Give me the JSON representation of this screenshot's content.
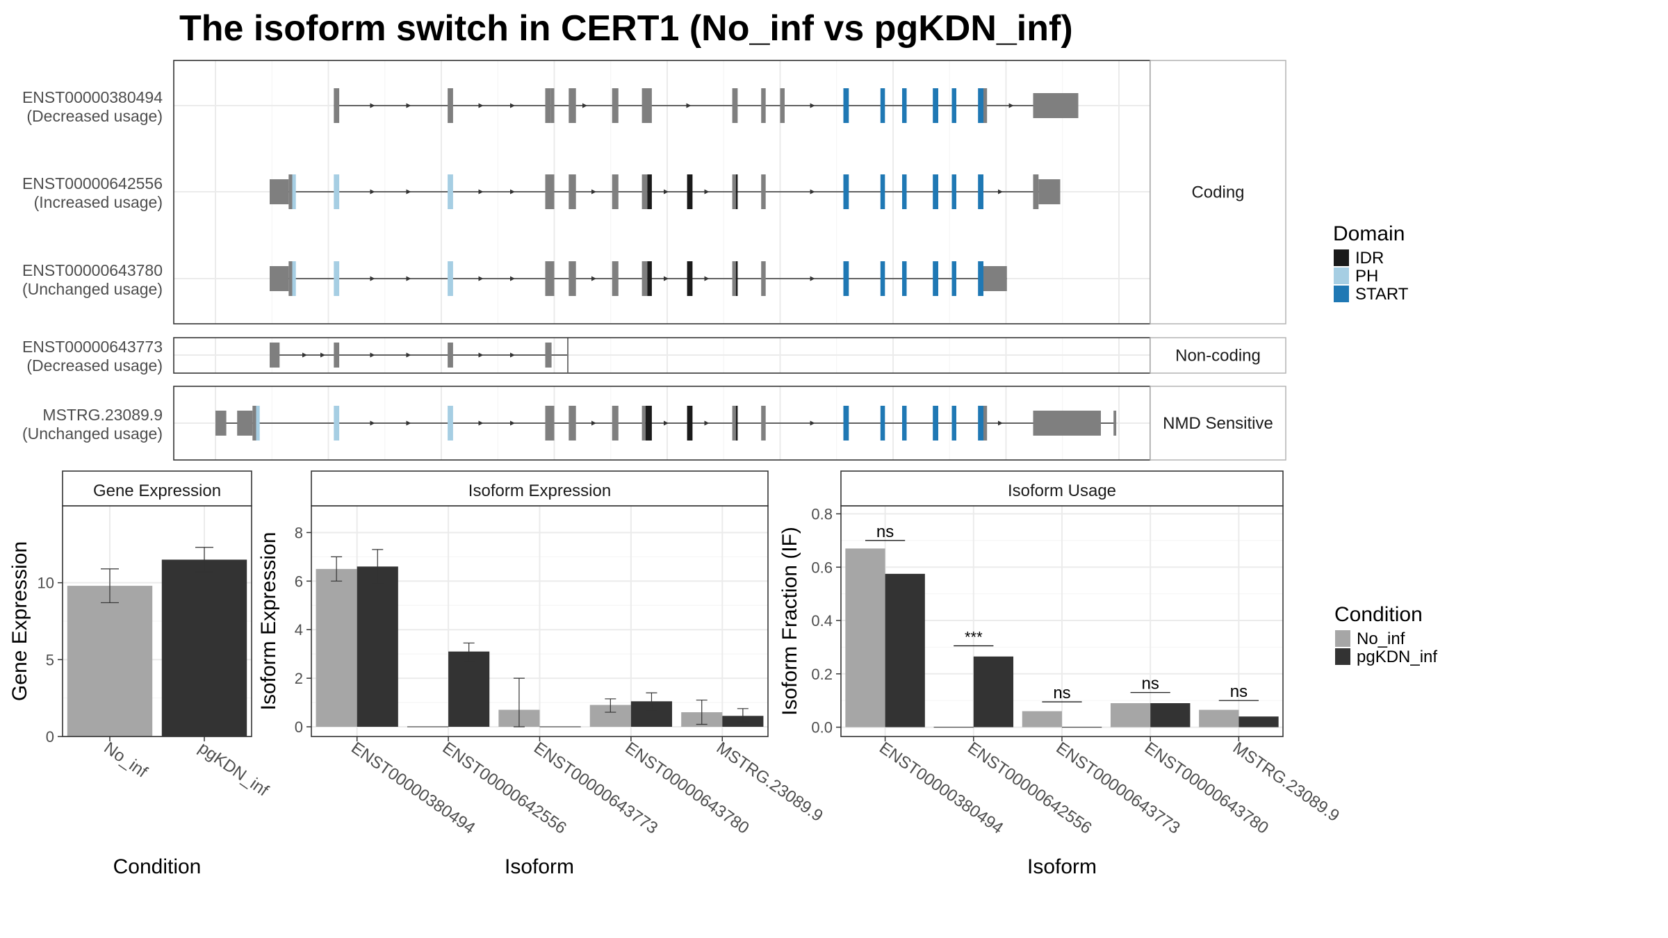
{
  "title": "The isoform switch in CERT1 (No_inf vs pgKDN_inf)",
  "colors": {
    "exon": "#7f7f7f",
    "idr": "#1a1a1a",
    "ph": "#a6cee3",
    "start": "#1f78b4",
    "no_inf": "#a6a6a6",
    "pgkdn_inf": "#333333",
    "grid": "#ebebeb",
    "strip_bg": "#ffffff",
    "border": "#333333"
  },
  "structure": {
    "genomic_range": [
      0,
      1000
    ],
    "panels": [
      {
        "label": "Coding",
        "isoforms": [
          0,
          1,
          2
        ]
      },
      {
        "label": "Non-coding",
        "isoforms": [
          3
        ]
      },
      {
        "label": "NMD Sensitive",
        "isoforms": [
          4
        ]
      }
    ],
    "isoforms": [
      {
        "id": "ENST00000380494",
        "usage": "(Decreased usage)",
        "exons": [
          {
            "s": 131,
            "e": 137,
            "t": "cds"
          },
          {
            "s": 257,
            "e": 263,
            "t": "cds"
          },
          {
            "s": 365,
            "e": 371,
            "t": "cds"
          },
          {
            "s": 371,
            "e": 375,
            "t": "cds"
          },
          {
            "s": 391,
            "e": 399,
            "t": "cds"
          },
          {
            "s": 439,
            "e": 446,
            "t": "cds"
          },
          {
            "s": 472,
            "e": 483,
            "t": "cds"
          },
          {
            "s": 572,
            "e": 578,
            "t": "cds"
          },
          {
            "s": 604,
            "e": 609,
            "t": "cds"
          },
          {
            "s": 625,
            "e": 630,
            "t": "cds"
          },
          {
            "s": 695,
            "e": 701,
            "t": "start"
          },
          {
            "s": 736,
            "e": 741,
            "t": "start"
          },
          {
            "s": 760,
            "e": 765,
            "t": "start"
          },
          {
            "s": 794,
            "e": 800,
            "t": "start"
          },
          {
            "s": 815,
            "e": 820,
            "t": "start"
          },
          {
            "s": 844,
            "e": 850,
            "t": "start"
          },
          {
            "s": 850,
            "e": 854,
            "t": "cds"
          },
          {
            "s": 905,
            "e": 955,
            "t": "utr"
          }
        ],
        "arrows": [
          175,
          215,
          295,
          330,
          410,
          525,
          662,
          882
        ]
      },
      {
        "id": "ENST00000642556",
        "usage": "(Increased usage)",
        "exons": [
          {
            "s": 60,
            "e": 81,
            "t": "utr"
          },
          {
            "s": 81,
            "e": 85,
            "t": "cds"
          },
          {
            "s": 85,
            "e": 89,
            "t": "ph"
          },
          {
            "s": 131,
            "e": 137,
            "t": "ph"
          },
          {
            "s": 257,
            "e": 263,
            "t": "ph"
          },
          {
            "s": 365,
            "e": 375,
            "t": "cds"
          },
          {
            "s": 391,
            "e": 399,
            "t": "cds"
          },
          {
            "s": 439,
            "e": 446,
            "t": "cds"
          },
          {
            "s": 472,
            "e": 478,
            "t": "cds"
          },
          {
            "s": 478,
            "e": 483,
            "t": "idr"
          },
          {
            "s": 522,
            "e": 528,
            "t": "idr"
          },
          {
            "s": 572,
            "e": 576,
            "t": "cds"
          },
          {
            "s": 576,
            "e": 578,
            "t": "idr"
          },
          {
            "s": 604,
            "e": 609,
            "t": "cds"
          },
          {
            "s": 695,
            "e": 701,
            "t": "start"
          },
          {
            "s": 736,
            "e": 741,
            "t": "start"
          },
          {
            "s": 760,
            "e": 765,
            "t": "start"
          },
          {
            "s": 794,
            "e": 800,
            "t": "start"
          },
          {
            "s": 815,
            "e": 820,
            "t": "start"
          },
          {
            "s": 844,
            "e": 850,
            "t": "start"
          },
          {
            "s": 905,
            "e": 911,
            "t": "cds"
          },
          {
            "s": 911,
            "e": 935,
            "t": "utr"
          }
        ],
        "arrows": [
          175,
          215,
          295,
          330,
          420,
          500,
          545,
          662,
          870
        ]
      },
      {
        "id": "ENST00000643780",
        "usage": "(Unchanged usage)",
        "exons": [
          {
            "s": 60,
            "e": 81,
            "t": "utr"
          },
          {
            "s": 81,
            "e": 85,
            "t": "cds"
          },
          {
            "s": 85,
            "e": 89,
            "t": "ph"
          },
          {
            "s": 131,
            "e": 137,
            "t": "ph"
          },
          {
            "s": 257,
            "e": 263,
            "t": "ph"
          },
          {
            "s": 365,
            "e": 375,
            "t": "cds"
          },
          {
            "s": 391,
            "e": 399,
            "t": "cds"
          },
          {
            "s": 439,
            "e": 446,
            "t": "cds"
          },
          {
            "s": 472,
            "e": 478,
            "t": "cds"
          },
          {
            "s": 478,
            "e": 483,
            "t": "idr"
          },
          {
            "s": 522,
            "e": 528,
            "t": "idr"
          },
          {
            "s": 572,
            "e": 576,
            "t": "cds"
          },
          {
            "s": 576,
            "e": 578,
            "t": "idr"
          },
          {
            "s": 604,
            "e": 609,
            "t": "cds"
          },
          {
            "s": 695,
            "e": 701,
            "t": "start"
          },
          {
            "s": 736,
            "e": 741,
            "t": "start"
          },
          {
            "s": 760,
            "e": 765,
            "t": "start"
          },
          {
            "s": 794,
            "e": 800,
            "t": "start"
          },
          {
            "s": 815,
            "e": 820,
            "t": "start"
          },
          {
            "s": 844,
            "e": 850,
            "t": "start"
          },
          {
            "s": 850,
            "e": 876,
            "t": "utr"
          }
        ],
        "arrows": [
          175,
          215,
          295,
          330,
          420,
          500,
          545,
          662
        ]
      },
      {
        "id": "ENST00000643773",
        "usage": "(Decreased usage)",
        "exons": [
          {
            "s": 60,
            "e": 71,
            "t": "utr"
          },
          {
            "s": 131,
            "e": 137,
            "t": "utr"
          },
          {
            "s": 257,
            "e": 263,
            "t": "utr"
          },
          {
            "s": 365,
            "e": 372,
            "t": "utr"
          }
        ],
        "line_end": 390,
        "arrows": [
          100,
          120,
          175,
          215,
          295,
          330
        ]
      },
      {
        "id": "MSTRG.23089.9",
        "usage": "(Unchanged usage)",
        "exons": [
          {
            "s": 0,
            "e": 12,
            "t": "utr"
          },
          {
            "s": 24,
            "e": 41,
            "t": "utr"
          },
          {
            "s": 41,
            "e": 45,
            "t": "cds"
          },
          {
            "s": 45,
            "e": 49,
            "t": "ph"
          },
          {
            "s": 131,
            "e": 137,
            "t": "ph"
          },
          {
            "s": 257,
            "e": 263,
            "t": "ph"
          },
          {
            "s": 365,
            "e": 375,
            "t": "cds"
          },
          {
            "s": 391,
            "e": 399,
            "t": "cds"
          },
          {
            "s": 439,
            "e": 446,
            "t": "cds"
          },
          {
            "s": 472,
            "e": 476,
            "t": "cds"
          },
          {
            "s": 476,
            "e": 483,
            "t": "idr"
          },
          {
            "s": 522,
            "e": 528,
            "t": "idr"
          },
          {
            "s": 572,
            "e": 576,
            "t": "cds"
          },
          {
            "s": 576,
            "e": 578,
            "t": "idr"
          },
          {
            "s": 604,
            "e": 609,
            "t": "cds"
          },
          {
            "s": 695,
            "e": 701,
            "t": "start"
          },
          {
            "s": 736,
            "e": 741,
            "t": "start"
          },
          {
            "s": 760,
            "e": 765,
            "t": "start"
          },
          {
            "s": 794,
            "e": 800,
            "t": "start"
          },
          {
            "s": 815,
            "e": 820,
            "t": "start"
          },
          {
            "s": 844,
            "e": 850,
            "t": "start"
          },
          {
            "s": 850,
            "e": 854,
            "t": "cds"
          },
          {
            "s": 905,
            "e": 980,
            "t": "utr"
          },
          {
            "s": 994,
            "e": 997,
            "t": "utr"
          }
        ],
        "arrows": [
          175,
          215,
          295,
          330,
          420,
          500,
          545,
          662,
          870
        ]
      }
    ]
  },
  "legend_domain": {
    "title": "Domain",
    "items": [
      {
        "label": "IDR",
        "color_key": "idr"
      },
      {
        "label": "PH",
        "color_key": "ph"
      },
      {
        "label": "START",
        "color_key": "start"
      }
    ]
  },
  "legend_condition": {
    "title": "Condition",
    "items": [
      {
        "label": "No_inf",
        "color_key": "no_inf"
      },
      {
        "label": "pgKDN_inf",
        "color_key": "pgkdn_inf"
      }
    ]
  },
  "chart_data": [
    {
      "type": "bar",
      "title": "Gene Expression",
      "xlabel": "Condition",
      "ylabel": "Gene Expression",
      "categories": [
        "No_inf",
        "pgKDN_inf"
      ],
      "values": [
        9.8,
        11.5
      ],
      "errors": [
        [
          8.7,
          10.9
        ],
        [
          10.7,
          12.3
        ]
      ],
      "ylim": [
        0,
        15
      ],
      "yticks": [
        0,
        5,
        10
      ]
    },
    {
      "type": "bar",
      "title": "Isoform Expression",
      "xlabel": "Isoform",
      "ylabel": "Isoform Expression",
      "categories": [
        "ENST00000380494",
        "ENST00000642556",
        "ENST00000643773",
        "ENST00000643780",
        "MSTRG.23089.9"
      ],
      "series": [
        {
          "name": "No_inf",
          "values": [
            6.5,
            0.0,
            0.7,
            0.9,
            0.6
          ],
          "errors": [
            [
              6.0,
              7.0
            ],
            [
              0.0,
              0.0
            ],
            [
              0.0,
              2.0
            ],
            [
              0.6,
              1.15
            ],
            [
              0.1,
              1.1
            ]
          ]
        },
        {
          "name": "pgKDN_inf",
          "values": [
            6.6,
            3.1,
            0.0,
            1.05,
            0.45
          ],
          "errors": [
            [
              5.9,
              7.3
            ],
            [
              2.7,
              3.45
            ],
            [
              0.0,
              0.0
            ],
            [
              0.7,
              1.4
            ],
            [
              0.2,
              0.75
            ]
          ]
        }
      ],
      "ylim": [
        -0.4,
        9.1
      ],
      "yticks": [
        0,
        2,
        4,
        6,
        8
      ]
    },
    {
      "type": "bar",
      "title": "Isoform Usage",
      "xlabel": "Isoform",
      "ylabel": "Isoform Fraction (IF)",
      "categories": [
        "ENST00000380494",
        "ENST00000642556",
        "ENST00000643773",
        "ENST00000643780",
        "MSTRG.23089.9"
      ],
      "series": [
        {
          "name": "No_inf",
          "values": [
            0.67,
            0.0,
            0.06,
            0.09,
            0.065
          ]
        },
        {
          "name": "pgKDN_inf",
          "values": [
            0.575,
            0.265,
            0.0,
            0.09,
            0.04
          ]
        }
      ],
      "significance": [
        "ns",
        "***",
        "ns",
        "ns",
        "ns"
      ],
      "sig_level": [
        0.7,
        0.305,
        0.095,
        0.13,
        0.1
      ],
      "ylim": [
        -0.035,
        0.83
      ],
      "yticks": [
        0.0,
        0.2,
        0.4,
        0.6,
        0.8
      ],
      "ytick_labels": [
        "0.0",
        "0.2",
        "0.4",
        "0.6",
        "0.8"
      ]
    }
  ]
}
